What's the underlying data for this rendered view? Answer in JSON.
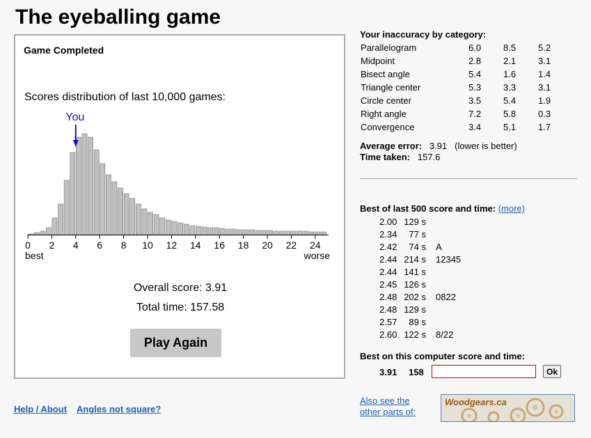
{
  "page": {
    "title": "The eyeballing game"
  },
  "game": {
    "status": "Game Completed",
    "distribution_label": "Scores distribution of last 10,000 games:",
    "you_marker": "You",
    "overall_score": "Overall score: 3.91",
    "total_time": "Total time: 157.58",
    "play_again_label": "Play Again"
  },
  "chart_data": {
    "type": "bar",
    "title": "",
    "x_tick_labels": [
      "0",
      "2",
      "4",
      "6",
      "8",
      "10",
      "12",
      "14",
      "16",
      "18",
      "20",
      "22",
      "24"
    ],
    "xlim": [
      0,
      25
    ],
    "left_label": "best",
    "right_label": "worse",
    "you_value": 4.0,
    "bin_width": 0.5,
    "bin_start": 0,
    "bar_color": "#c0c0c0",
    "values": [
      1,
      3,
      5,
      10,
      24,
      44,
      78,
      118,
      140,
      145,
      140,
      122,
      102,
      86,
      76,
      67,
      59,
      52,
      44,
      37,
      32,
      29,
      24,
      21,
      19,
      17,
      15,
      13,
      12,
      11,
      10,
      10,
      9,
      8,
      8,
      7,
      7,
      7,
      6,
      6,
      6,
      5,
      5,
      5,
      5,
      5,
      5,
      4,
      4,
      4
    ]
  },
  "inaccuracy": {
    "title": "Your inaccuracy by category:",
    "rows": [
      {
        "name": "Parallelogram",
        "v1": "6.0",
        "v2": "8.5",
        "v3": "5.2"
      },
      {
        "name": "Midpoint",
        "v1": "2.8",
        "v2": "2.1",
        "v3": "3.1"
      },
      {
        "name": "Bisect angle",
        "v1": "5.4",
        "v2": "1.6",
        "v3": "1.4"
      },
      {
        "name": "Triangle center",
        "v1": "5.3",
        "v2": "3.3",
        "v3": "3.1"
      },
      {
        "name": "Circle center",
        "v1": "3.5",
        "v2": "5.4",
        "v3": "1.9"
      },
      {
        "name": "Right angle",
        "v1": "7.2",
        "v2": "5.8",
        "v3": "0.3"
      },
      {
        "name": "Convergence",
        "v1": "3.4",
        "v2": "5.1",
        "v3": "1.7"
      }
    ],
    "average_label": "Average error:",
    "average_value": "3.91",
    "average_note": "(lower is better)",
    "time_label": "Time taken:",
    "time_value": "157.6"
  },
  "best500": {
    "title": "Best of last 500 score and time:",
    "more_link": "(more)",
    "rows": [
      {
        "score": "2.00",
        "time": "129 s",
        "name": ""
      },
      {
        "score": "2.34",
        "time": "77 s",
        "name": ""
      },
      {
        "score": "2.42",
        "time": "74 s",
        "name": "A"
      },
      {
        "score": "2.44",
        "time": "214 s",
        "name": "12345"
      },
      {
        "score": "2.44",
        "time": "141 s",
        "name": ""
      },
      {
        "score": "2.45",
        "time": "126 s",
        "name": ""
      },
      {
        "score": "2.48",
        "time": "202 s",
        "name": "0822"
      },
      {
        "score": "2.48",
        "time": "129 s",
        "name": ""
      },
      {
        "score": "2.57",
        "time": "89 s",
        "name": ""
      },
      {
        "score": "2.60",
        "time": "122 s",
        "name": "8/22"
      }
    ]
  },
  "best_computer": {
    "title": "Best on this computer score and time:",
    "score": "3.91",
    "time": "158",
    "name_value": "",
    "ok_label": "Ok"
  },
  "footer": {
    "help_link": "Help / About",
    "angles_link": "Angles not square?",
    "also_link": "Also see the other parts of:",
    "logo_text": "Woodgears.ca"
  }
}
